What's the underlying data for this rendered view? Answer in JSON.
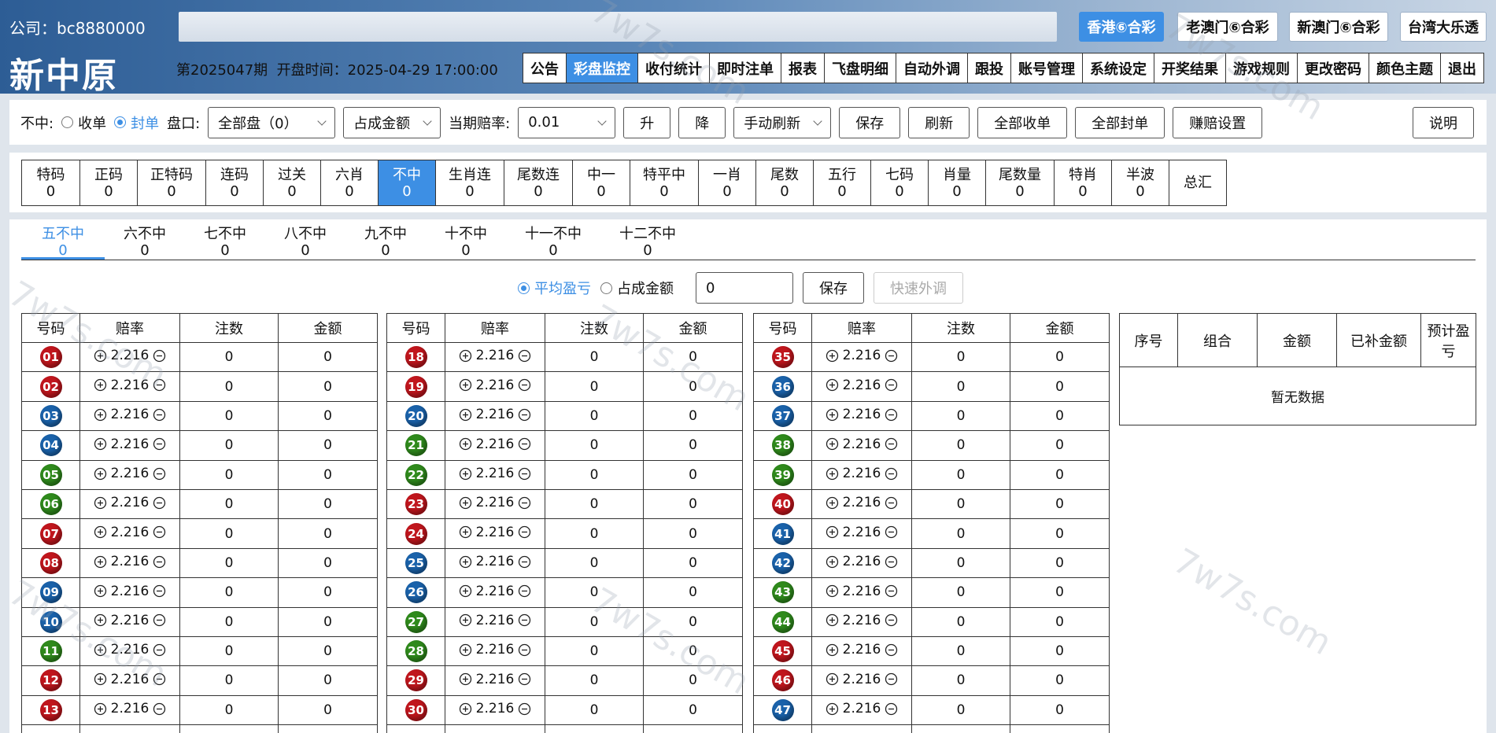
{
  "header": {
    "company": "公司：bc8880000",
    "brand": "新中原",
    "period": "第2025047期",
    "open_time": "开盘时间：2025-04-29 17:00:00",
    "lotteries": [
      "香港⑥合彩",
      "老澳门⑥合彩",
      "新澳门⑥合彩",
      "台湾大乐透"
    ],
    "active_lottery": 0,
    "nav": [
      "公告",
      "彩盘监控",
      "收付统计",
      "即时注单",
      "报表",
      "飞盘明细",
      "自动外调",
      "跟投",
      "账号管理",
      "系统设定",
      "开奖结果",
      "游戏规则",
      "更改密码",
      "颜色主题",
      "退出"
    ],
    "active_nav": 1
  },
  "toolbar": {
    "label_type": "不中:",
    "radio": [
      "收单",
      "封单"
    ],
    "radio_checked": 1,
    "label_pan": "盘口:",
    "pan_select": "全部盘（0）",
    "share_select": "占成金额",
    "label_odds": "当期赔率:",
    "odds_select": "0.01",
    "steps": [
      "升",
      "降"
    ],
    "refresh_select": "手动刷新",
    "actions": [
      "保存",
      "刷新",
      "全部收单",
      "全部封单",
      "赚赔设置"
    ],
    "help": "说明"
  },
  "tabs": [
    {
      "label": "特码",
      "count": "0"
    },
    {
      "label": "正码",
      "count": "0"
    },
    {
      "label": "正特码",
      "count": "0"
    },
    {
      "label": "连码",
      "count": "0"
    },
    {
      "label": "过关",
      "count": "0"
    },
    {
      "label": "六肖",
      "count": "0"
    },
    {
      "label": "不中",
      "count": "0"
    },
    {
      "label": "生肖连",
      "count": "0"
    },
    {
      "label": "尾数连",
      "count": "0"
    },
    {
      "label": "中一",
      "count": "0"
    },
    {
      "label": "特平中",
      "count": "0"
    },
    {
      "label": "一肖",
      "count": "0"
    },
    {
      "label": "尾数",
      "count": "0"
    },
    {
      "label": "五行",
      "count": "0"
    },
    {
      "label": "七码",
      "count": "0"
    },
    {
      "label": "肖量",
      "count": "0"
    },
    {
      "label": "尾数量",
      "count": "0"
    },
    {
      "label": "特肖",
      "count": "0"
    },
    {
      "label": "半波",
      "count": "0"
    },
    {
      "label": "总汇"
    }
  ],
  "active_tab": 6,
  "subtabs": [
    {
      "label": "五不中",
      "count": "0"
    },
    {
      "label": "六不中",
      "count": "0"
    },
    {
      "label": "七不中",
      "count": "0"
    },
    {
      "label": "八不中",
      "count": "0"
    },
    {
      "label": "九不中",
      "count": "0"
    },
    {
      "label": "十不中",
      "count": "0"
    },
    {
      "label": "十一不中",
      "count": "0"
    },
    {
      "label": "十二不中",
      "count": "0"
    }
  ],
  "active_subtab": 0,
  "filter": {
    "radio": [
      "平均盈亏",
      "占成金额"
    ],
    "radio_checked": 0,
    "input": "0",
    "save": "保存",
    "quick": "快速外调"
  },
  "tables": {
    "headers": [
      "号码",
      "赔率",
      "注数",
      "金额"
    ],
    "groups": [
      [
        {
          "no": "01",
          "color": "#c0161d",
          "odds": "2.216",
          "count": "0",
          "amount": "0"
        },
        {
          "no": "02",
          "color": "#c0161d",
          "odds": "2.216",
          "count": "0",
          "amount": "0"
        },
        {
          "no": "03",
          "color": "#1a62aa",
          "odds": "2.216",
          "count": "0",
          "amount": "0"
        },
        {
          "no": "04",
          "color": "#1a62aa",
          "odds": "2.216",
          "count": "0",
          "amount": "0"
        },
        {
          "no": "05",
          "color": "#2f8a1c",
          "odds": "2.216",
          "count": "0",
          "amount": "0"
        },
        {
          "no": "06",
          "color": "#2f8a1c",
          "odds": "2.216",
          "count": "0",
          "amount": "0"
        },
        {
          "no": "07",
          "color": "#c0161d",
          "odds": "2.216",
          "count": "0",
          "amount": "0"
        },
        {
          "no": "08",
          "color": "#c0161d",
          "odds": "2.216",
          "count": "0",
          "amount": "0"
        },
        {
          "no": "09",
          "color": "#1a62aa",
          "odds": "2.216",
          "count": "0",
          "amount": "0"
        },
        {
          "no": "10",
          "color": "#1a62aa",
          "odds": "2.216",
          "count": "0",
          "amount": "0"
        },
        {
          "no": "11",
          "color": "#2f8a1c",
          "odds": "2.216",
          "count": "0",
          "amount": "0"
        },
        {
          "no": "12",
          "color": "#c0161d",
          "odds": "2.216",
          "count": "0",
          "amount": "0"
        },
        {
          "no": "13",
          "color": "#c0161d",
          "odds": "2.216",
          "count": "0",
          "amount": "0"
        }
      ],
      [
        {
          "no": "18",
          "color": "#c0161d",
          "odds": "2.216",
          "count": "0",
          "amount": "0"
        },
        {
          "no": "19",
          "color": "#c0161d",
          "odds": "2.216",
          "count": "0",
          "amount": "0"
        },
        {
          "no": "20",
          "color": "#1a62aa",
          "odds": "2.216",
          "count": "0",
          "amount": "0"
        },
        {
          "no": "21",
          "color": "#2f8a1c",
          "odds": "2.216",
          "count": "0",
          "amount": "0"
        },
        {
          "no": "22",
          "color": "#2f8a1c",
          "odds": "2.216",
          "count": "0",
          "amount": "0"
        },
        {
          "no": "23",
          "color": "#c0161d",
          "odds": "2.216",
          "count": "0",
          "amount": "0"
        },
        {
          "no": "24",
          "color": "#c0161d",
          "odds": "2.216",
          "count": "0",
          "amount": "0"
        },
        {
          "no": "25",
          "color": "#1a62aa",
          "odds": "2.216",
          "count": "0",
          "amount": "0"
        },
        {
          "no": "26",
          "color": "#1a62aa",
          "odds": "2.216",
          "count": "0",
          "amount": "0"
        },
        {
          "no": "27",
          "color": "#2f8a1c",
          "odds": "2.216",
          "count": "0",
          "amount": "0"
        },
        {
          "no": "28",
          "color": "#2f8a1c",
          "odds": "2.216",
          "count": "0",
          "amount": "0"
        },
        {
          "no": "29",
          "color": "#c0161d",
          "odds": "2.216",
          "count": "0",
          "amount": "0"
        },
        {
          "no": "30",
          "color": "#c0161d",
          "odds": "2.216",
          "count": "0",
          "amount": "0"
        }
      ],
      [
        {
          "no": "35",
          "color": "#c0161d",
          "odds": "2.216",
          "count": "0",
          "amount": "0"
        },
        {
          "no": "36",
          "color": "#1a62aa",
          "odds": "2.216",
          "count": "0",
          "amount": "0"
        },
        {
          "no": "37",
          "color": "#1a62aa",
          "odds": "2.216",
          "count": "0",
          "amount": "0"
        },
        {
          "no": "38",
          "color": "#2f8a1c",
          "odds": "2.216",
          "count": "0",
          "amount": "0"
        },
        {
          "no": "39",
          "color": "#2f8a1c",
          "odds": "2.216",
          "count": "0",
          "amount": "0"
        },
        {
          "no": "40",
          "color": "#c0161d",
          "odds": "2.216",
          "count": "0",
          "amount": "0"
        },
        {
          "no": "41",
          "color": "#1a62aa",
          "odds": "2.216",
          "count": "0",
          "amount": "0"
        },
        {
          "no": "42",
          "color": "#1a62aa",
          "odds": "2.216",
          "count": "0",
          "amount": "0"
        },
        {
          "no": "43",
          "color": "#2f8a1c",
          "odds": "2.216",
          "count": "0",
          "amount": "0"
        },
        {
          "no": "44",
          "color": "#2f8a1c",
          "odds": "2.216",
          "count": "0",
          "amount": "0"
        },
        {
          "no": "45",
          "color": "#c0161d",
          "odds": "2.216",
          "count": "0",
          "amount": "0"
        },
        {
          "no": "46",
          "color": "#c0161d",
          "odds": "2.216",
          "count": "0",
          "amount": "0"
        },
        {
          "no": "47",
          "color": "#1a62aa",
          "odds": "2.216",
          "count": "0",
          "amount": "0"
        }
      ]
    ]
  },
  "summary": {
    "headers": [
      "序号",
      "组合",
      "金额",
      "已补金额",
      "预计盈亏"
    ],
    "empty": "暂无数据"
  },
  "watermark": "7w7s.com"
}
